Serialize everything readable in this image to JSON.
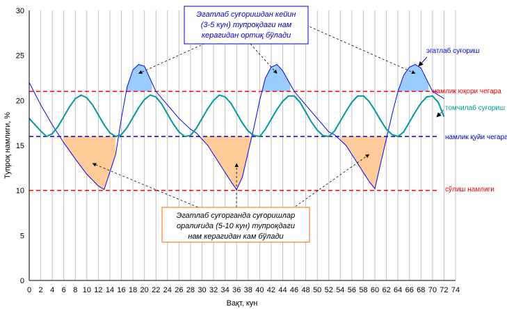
{
  "chart_data": {
    "type": "line",
    "xlabel": "Вақт, кун",
    "ylabel": "Тупроқ намлиги, %",
    "xlim": [
      0,
      74
    ],
    "ylim": [
      0,
      30
    ],
    "x_ticks": [
      0,
      2,
      4,
      6,
      8,
      10,
      12,
      14,
      16,
      18,
      20,
      22,
      24,
      26,
      28,
      30,
      32,
      34,
      36,
      38,
      40,
      42,
      44,
      46,
      48,
      50,
      52,
      54,
      56,
      58,
      60,
      62,
      64,
      66,
      68,
      70,
      72,
      74
    ],
    "y_ticks": [
      0,
      5,
      10,
      15,
      20,
      25,
      30
    ],
    "grid": "vertical",
    "series": [
      {
        "name": "эгатлаб суғориш",
        "color": "#0000ff",
        "x": [
          0,
          2,
          4,
          6,
          8,
          10,
          12,
          13,
          15,
          16,
          17,
          18,
          19,
          20,
          22,
          24,
          26,
          28,
          29,
          31,
          33,
          35,
          36,
          37,
          39,
          40,
          41,
          42,
          43,
          44,
          46,
          48,
          50,
          52,
          53,
          55,
          57,
          59,
          60,
          61,
          63,
          64,
          65,
          66,
          67,
          68,
          70,
          72
        ],
        "y": [
          22,
          19.5,
          17.3,
          15.3,
          13.5,
          11.8,
          10.5,
          10.1,
          14,
          18,
          21.5,
          23.4,
          24,
          23.8,
          21,
          19.5,
          18,
          16.8,
          16.4,
          15,
          13,
          11,
          10.1,
          11.5,
          17,
          20,
          22.5,
          23.7,
          24,
          23.3,
          21,
          19.5,
          18,
          16.5,
          16.2,
          15,
          13,
          11,
          10.2,
          13,
          18.5,
          21,
          22.8,
          23.7,
          24,
          23.6,
          21,
          20.2
        ]
      },
      {
        "name": "томчилаб суғориш",
        "color": "#009999",
        "x": [
          0,
          2,
          3,
          4,
          5,
          6,
          7,
          8,
          9,
          10,
          11,
          12,
          13,
          14,
          15,
          16,
          17,
          18,
          19,
          20,
          21,
          22,
          23,
          24,
          25,
          26,
          27,
          28,
          29,
          30,
          31,
          32,
          33,
          34,
          35,
          36,
          37,
          38,
          39,
          40,
          41,
          42,
          43,
          44,
          45,
          46,
          47,
          48,
          49,
          50,
          51,
          52,
          53,
          54,
          55,
          56,
          57,
          58,
          59,
          60,
          61,
          62,
          63,
          64,
          65,
          66,
          67,
          68,
          69,
          70,
          71,
          72
        ],
        "y": [
          18,
          16.6,
          16,
          16.3,
          17.1,
          18.2,
          19.3,
          20.2,
          20.6,
          20.3,
          19.5,
          18.4,
          17.3,
          16.4,
          16,
          16.2,
          17,
          18.1,
          19.2,
          20.1,
          20.6,
          20.4,
          19.6,
          18.5,
          17.4,
          16.5,
          16,
          16.1,
          16.9,
          18,
          19.1,
          20,
          20.6,
          20.4,
          19.7,
          18.6,
          17.5,
          16.6,
          16.1,
          16,
          16.8,
          17.9,
          19,
          19.9,
          20.5,
          20.5,
          19.8,
          18.7,
          17.6,
          16.7,
          16.1,
          16,
          16.6,
          17.7,
          18.8,
          19.8,
          20.5,
          20.5,
          19.9,
          18.9,
          17.8,
          16.8,
          16.2,
          16,
          16.5,
          17.6,
          18.7,
          19.7,
          20.4,
          20.5,
          19.8,
          18.2
        ]
      }
    ],
    "reference_lines": [
      {
        "y": 21,
        "label": "намлик юқори чегара",
        "color": "#ff0000"
      },
      {
        "y": 16,
        "label": "намлик қуйи чегара",
        "color": "#0000cc"
      },
      {
        "y": 10,
        "label": "сўлиш намлиги",
        "color": "#ff0000"
      }
    ],
    "shaded_above": {
      "threshold": 21,
      "color": "#99ccff",
      "ranges": [
        [
          16,
          21.3
        ],
        [
          40,
          45.3
        ],
        [
          64,
          69.3
        ]
      ]
    },
    "shaded_below": {
      "threshold": 16,
      "color": "#ffcc99",
      "ranges": [
        [
          6,
          15
        ],
        [
          30,
          39
        ],
        [
          54,
          62
        ]
      ]
    },
    "annotations": [
      {
        "lines": [
          "Эгатлаб суғоришдан кейин",
          "(3-5 кун) тупроқдаги нам",
          "керагидан ортиқ бўлади"
        ],
        "border_color": "#0000cc",
        "text_color": "#0000cc",
        "targets": [
          [
            19,
            23
          ],
          [
            43,
            23
          ],
          [
            67,
            23
          ]
        ]
      },
      {
        "lines": [
          "Эгатлаб суғорганда  суғоришлар",
          "оралиғида (5-10 кун) тупроқдаги",
          "нам керагидан кам бўлади"
        ],
        "border_color": "#ff6600",
        "text_color": "#000000",
        "targets": [
          [
            11,
            13
          ],
          [
            36,
            13
          ],
          [
            59,
            14
          ]
        ]
      }
    ]
  }
}
